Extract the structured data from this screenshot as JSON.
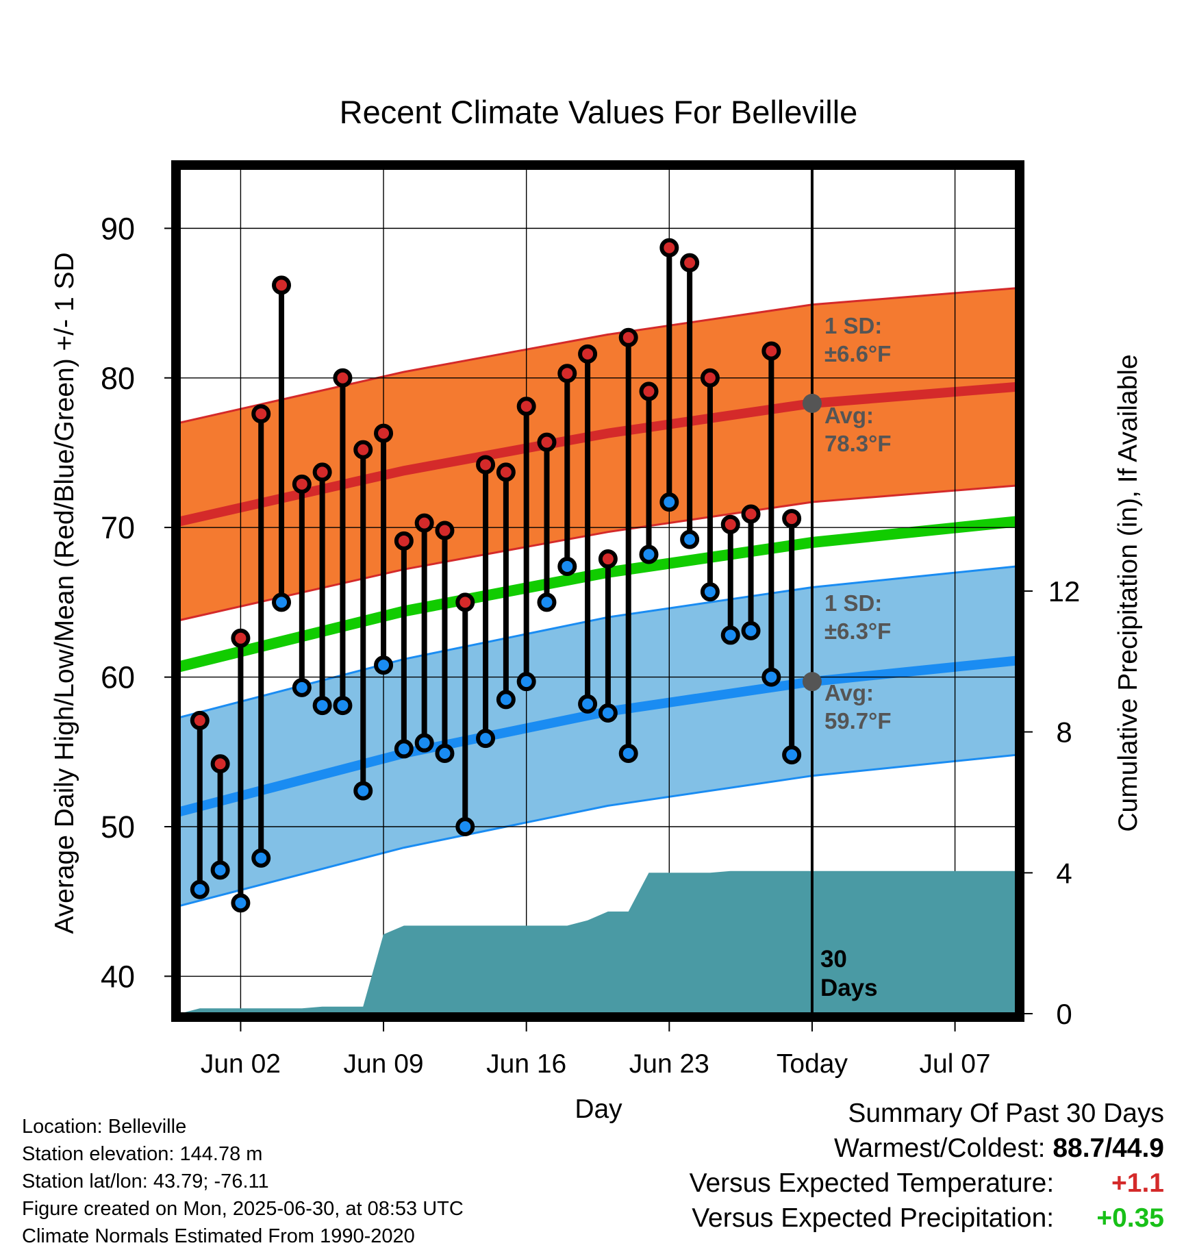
{
  "chart_data": {
    "type": "line",
    "title": "Recent Climate Values For Belleville",
    "xlabel": "Day",
    "ylabel_left": "Average Daily High/Low/Mean (Red/Blue/Green) +/- 1 SD",
    "ylabel_right": "Cumulative Precipitation (in), If Available",
    "x_tick_labels": [
      "Jun 02",
      "Jun 09",
      "Jun 16",
      "Jun 23",
      "Today",
      "Jul 07"
    ],
    "x_tick_dates": [
      "2025-06-02",
      "2025-06-09",
      "2025-06-16",
      "2025-06-23",
      "2025-06-30",
      "2025-07-07"
    ],
    "xlim": [
      "2025-05-30",
      "2025-07-10"
    ],
    "ylim_left": [
      37.5,
      94
    ],
    "yticks_left": [
      40,
      50,
      60,
      70,
      80,
      90
    ],
    "ylim_right": [
      0,
      24
    ],
    "yticks_right": [
      0,
      4,
      8,
      12
    ],
    "grid": true,
    "days": [
      "2025-05-31",
      "2025-06-01",
      "2025-06-02",
      "2025-06-03",
      "2025-06-04",
      "2025-06-05",
      "2025-06-06",
      "2025-06-07",
      "2025-06-08",
      "2025-06-09",
      "2025-06-10",
      "2025-06-11",
      "2025-06-12",
      "2025-06-13",
      "2025-06-14",
      "2025-06-15",
      "2025-06-16",
      "2025-06-17",
      "2025-06-18",
      "2025-06-19",
      "2025-06-20",
      "2025-06-21",
      "2025-06-22",
      "2025-06-23",
      "2025-06-24",
      "2025-06-25",
      "2025-06-26",
      "2025-06-27",
      "2025-06-28",
      "2025-06-29"
    ],
    "daily_high": [
      57.1,
      54.2,
      62.6,
      77.6,
      86.2,
      72.9,
      73.7,
      80.0,
      75.2,
      76.3,
      69.1,
      70.3,
      69.8,
      65.0,
      74.2,
      73.7,
      78.1,
      75.7,
      80.3,
      81.6,
      67.9,
      82.7,
      79.1,
      88.7,
      87.7,
      80.0,
      70.2,
      70.9,
      81.8,
      70.6
    ],
    "daily_low": [
      45.8,
      47.1,
      44.9,
      47.9,
      65.0,
      59.3,
      58.1,
      58.1,
      52.4,
      60.8,
      55.2,
      55.6,
      54.9,
      50.0,
      55.9,
      58.5,
      59.7,
      65.0,
      67.4,
      58.2,
      57.6,
      54.9,
      68.2,
      71.7,
      69.2,
      65.7,
      62.8,
      63.1,
      60.0,
      54.8
    ],
    "normals_dates": [
      "2025-05-30",
      "2025-06-10",
      "2025-06-20",
      "2025-06-30",
      "2025-07-10"
    ],
    "normal_high": [
      70.4,
      73.8,
      76.3,
      78.3,
      79.4
    ],
    "normal_low": [
      51.0,
      54.9,
      57.7,
      59.7,
      61.1
    ],
    "normal_mean": [
      60.7,
      64.4,
      67.0,
      69.0,
      70.4
    ],
    "sd_high": 6.6,
    "sd_low": 6.3,
    "precip_dates": [
      "2025-05-30",
      "2025-05-31",
      "2025-06-05",
      "2025-06-06",
      "2025-06-08",
      "2025-06-09",
      "2025-06-10",
      "2025-06-18",
      "2025-06-19",
      "2025-06-20",
      "2025-06-21",
      "2025-06-22",
      "2025-06-25",
      "2025-06-26",
      "2025-07-10"
    ],
    "cumulative_precip": [
      0.0,
      0.15,
      0.15,
      0.2,
      0.2,
      2.25,
      2.5,
      2.5,
      2.65,
      2.9,
      2.9,
      4.0,
      4.0,
      4.05,
      4.05
    ],
    "today_label": "Today",
    "high_sd_label": [
      "1 SD:",
      "±6.6°F"
    ],
    "high_avg_label": [
      "Avg:",
      "78.3°F"
    ],
    "low_sd_label": [
      "1 SD:",
      "±6.3°F"
    ],
    "low_avg_label": [
      "Avg:",
      "59.7°F"
    ],
    "days_label": [
      "30",
      "Days"
    ],
    "colors": {
      "high_band": "#f47a30",
      "high_line": "#d42a2a",
      "low_band": "#82c0e6",
      "low_line": "#1a8cf2",
      "mean_line": "#11cc00",
      "precip": "#4a9aa4",
      "annotation": "#555555"
    }
  },
  "info": {
    "location": "Location: Belleville",
    "elevation": "Station elevation: 144.78 m",
    "latlon": "Station lat/lon: 43.79; -76.11",
    "created": "Figure created on Mon, 2025-06-30, at 08:53 UTC",
    "normals": "Climate Normals Estimated From 1990-2020"
  },
  "summary": {
    "title": "Summary Of Past 30 Days",
    "warm_cold_label": "Warmest/Coldest:",
    "warm_cold_value": "88.7/44.9",
    "temp_label": "Versus Expected Temperature:",
    "temp_value": "+1.1",
    "precip_label": "Versus Expected Precipitation:",
    "precip_value": "+0.35"
  }
}
